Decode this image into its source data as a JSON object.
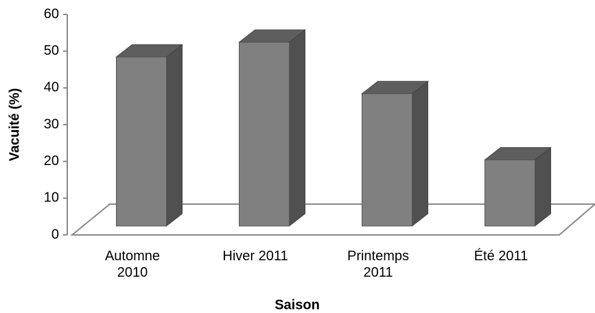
{
  "chart_data": {
    "type": "bar3d",
    "ylabel": "Vacuité (%)",
    "xlabel": "Saison",
    "categories": [
      "Automne 2010",
      "Hiver 2011",
      "Printemps 2011",
      "Été 2011"
    ],
    "values": [
      46,
      50,
      36,
      18
    ],
    "color": "#808080",
    "ylim": [
      0,
      60
    ],
    "yticks": [
      0,
      10,
      20,
      30,
      40,
      50,
      60
    ]
  }
}
